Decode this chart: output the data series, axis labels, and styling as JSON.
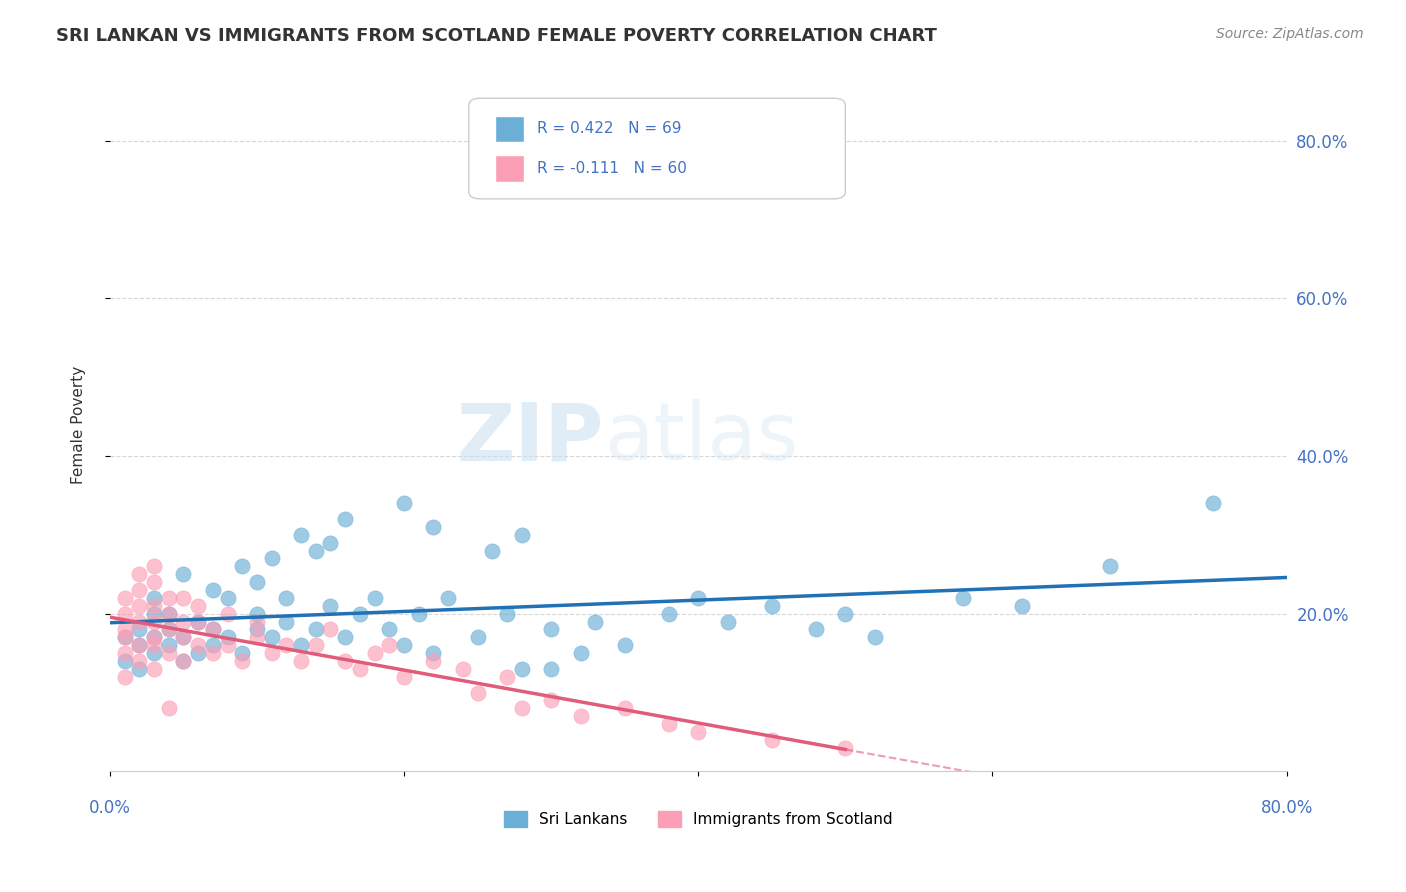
{
  "title": "SRI LANKAN VS IMMIGRANTS FROM SCOTLAND FEMALE POVERTY CORRELATION CHART",
  "source": "Source: ZipAtlas.com",
  "ylabel": "Female Poverty",
  "ytick_labels": [
    "20.0%",
    "40.0%",
    "60.0%",
    "80.0%"
  ],
  "ytick_values": [
    0.2,
    0.4,
    0.6,
    0.8
  ],
  "xlim": [
    0.0,
    0.8
  ],
  "ylim": [
    0.0,
    0.88
  ],
  "blue_color": "#6baed6",
  "pink_color": "#fc9eb5",
  "blue_line_color": "#2171b5",
  "pink_line_color": "#e05c7a",
  "sri_lankans_x": [
    0.01,
    0.01,
    0.02,
    0.02,
    0.02,
    0.03,
    0.03,
    0.03,
    0.03,
    0.04,
    0.04,
    0.04,
    0.05,
    0.05,
    0.05,
    0.06,
    0.06,
    0.07,
    0.07,
    0.07,
    0.08,
    0.08,
    0.09,
    0.09,
    0.1,
    0.1,
    0.1,
    0.11,
    0.11,
    0.12,
    0.12,
    0.13,
    0.13,
    0.14,
    0.14,
    0.15,
    0.15,
    0.16,
    0.16,
    0.17,
    0.18,
    0.19,
    0.2,
    0.2,
    0.21,
    0.22,
    0.22,
    0.23,
    0.25,
    0.26,
    0.27,
    0.28,
    0.28,
    0.3,
    0.3,
    0.32,
    0.33,
    0.35,
    0.38,
    0.4,
    0.42,
    0.45,
    0.48,
    0.5,
    0.52,
    0.58,
    0.62,
    0.68,
    0.75
  ],
  "sri_lankans_y": [
    0.14,
    0.17,
    0.13,
    0.16,
    0.18,
    0.15,
    0.17,
    0.2,
    0.22,
    0.16,
    0.18,
    0.2,
    0.14,
    0.17,
    0.25,
    0.15,
    0.19,
    0.16,
    0.18,
    0.23,
    0.17,
    0.22,
    0.15,
    0.26,
    0.18,
    0.2,
    0.24,
    0.17,
    0.27,
    0.19,
    0.22,
    0.16,
    0.3,
    0.18,
    0.28,
    0.21,
    0.29,
    0.17,
    0.32,
    0.2,
    0.22,
    0.18,
    0.16,
    0.34,
    0.2,
    0.15,
    0.31,
    0.22,
    0.17,
    0.28,
    0.2,
    0.13,
    0.3,
    0.13,
    0.18,
    0.15,
    0.19,
    0.16,
    0.2,
    0.22,
    0.19,
    0.21,
    0.18,
    0.2,
    0.17,
    0.22,
    0.21,
    0.26,
    0.34
  ],
  "scotland_x": [
    0.01,
    0.01,
    0.01,
    0.01,
    0.01,
    0.01,
    0.02,
    0.02,
    0.02,
    0.02,
    0.02,
    0.02,
    0.03,
    0.03,
    0.03,
    0.03,
    0.03,
    0.03,
    0.03,
    0.04,
    0.04,
    0.04,
    0.04,
    0.04,
    0.05,
    0.05,
    0.05,
    0.05,
    0.06,
    0.06,
    0.06,
    0.07,
    0.07,
    0.08,
    0.08,
    0.09,
    0.1,
    0.1,
    0.11,
    0.12,
    0.13,
    0.14,
    0.15,
    0.16,
    0.17,
    0.18,
    0.19,
    0.2,
    0.22,
    0.24,
    0.25,
    0.27,
    0.28,
    0.3,
    0.32,
    0.35,
    0.38,
    0.4,
    0.45,
    0.5
  ],
  "scotland_y": [
    0.15,
    0.18,
    0.2,
    0.22,
    0.17,
    0.12,
    0.16,
    0.19,
    0.21,
    0.14,
    0.23,
    0.25,
    0.13,
    0.17,
    0.19,
    0.21,
    0.24,
    0.26,
    0.16,
    0.15,
    0.18,
    0.2,
    0.22,
    0.08,
    0.14,
    0.17,
    0.19,
    0.22,
    0.16,
    0.19,
    0.21,
    0.15,
    0.18,
    0.16,
    0.2,
    0.14,
    0.17,
    0.19,
    0.15,
    0.16,
    0.14,
    0.16,
    0.18,
    0.14,
    0.13,
    0.15,
    0.16,
    0.12,
    0.14,
    0.13,
    0.1,
    0.12,
    0.08,
    0.09,
    0.07,
    0.08,
    0.06,
    0.05,
    0.04,
    0.03
  ],
  "watermark_zip": "ZIP",
  "watermark_atlas": "atlas",
  "background_color": "#ffffff",
  "grid_color": "#cccccc"
}
